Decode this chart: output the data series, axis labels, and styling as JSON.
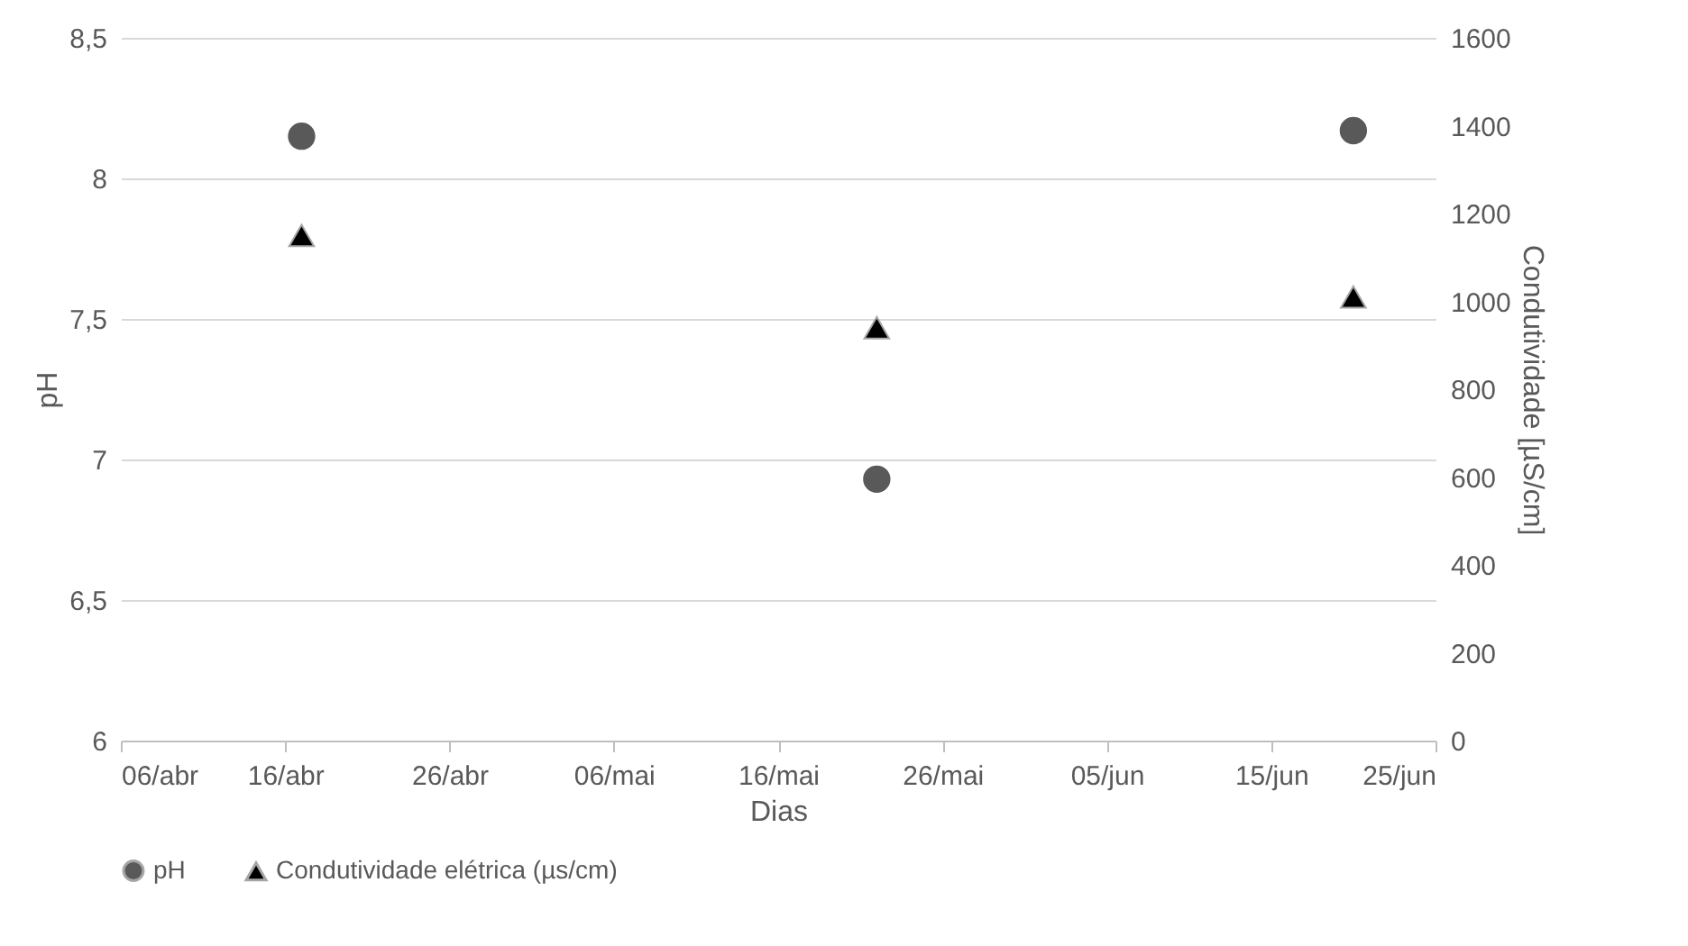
{
  "chart_data": {
    "type": "scatter",
    "xlabel": "Dias",
    "ylabel": "pH",
    "y2label": "Condutividade [µS/cm]",
    "x": [
      "--04-17",
      "--05-22",
      "--06-20"
    ],
    "series": [
      {
        "name": "pH",
        "color": "#595959",
        "marker": "circle",
        "values": [
          8.15,
          6.93,
          8.17
        ]
      },
      {
        "name": "Condutividade elétrica (µs/cm)",
        "color": "#000000",
        "marker": "triangle",
        "axis": "y2",
        "values": [
          1150,
          940,
          1010
        ]
      }
    ],
    "xlim": [
      "--04-06",
      "--06-25"
    ],
    "xticks": [
      {
        "value": "--04-06",
        "label": "06/abr"
      },
      {
        "value": "--04-16",
        "label": "16/abr"
      },
      {
        "value": "--04-26",
        "label": "26/abr"
      },
      {
        "value": "--05-06",
        "label": "06/mai"
      },
      {
        "value": "--05-16",
        "label": "16/mai"
      },
      {
        "value": "--05-26",
        "label": "26/mai"
      },
      {
        "value": "--06-05",
        "label": "05/jun"
      },
      {
        "value": "--06-15",
        "label": "15/jun"
      },
      {
        "value": "--06-25",
        "label": "25/jun"
      }
    ],
    "ylim": [
      6,
      8.5
    ],
    "yticks": [
      6,
      {
        "value": 6.5,
        "label": "6,5"
      },
      7,
      {
        "value": 7.5,
        "label": "7,5"
      },
      8,
      {
        "value": 8.5,
        "label": "8,5"
      }
    ],
    "y2lim": [
      0,
      1600
    ],
    "y2ticks": [
      0,
      200,
      400,
      600,
      800,
      1000,
      1200,
      1400,
      1600
    ],
    "grid": "y",
    "legend": "bottom"
  }
}
